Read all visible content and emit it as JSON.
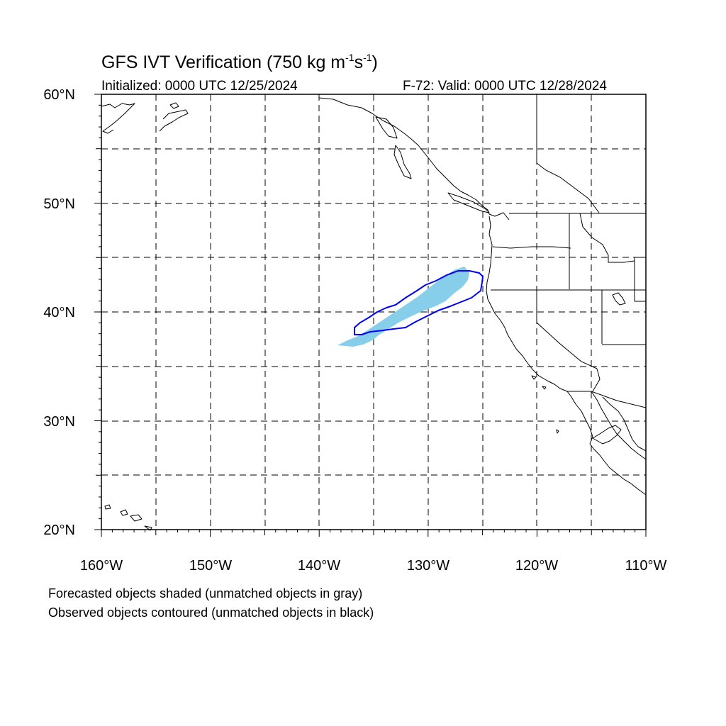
{
  "title": {
    "main": "GFS IVT Verification (750 kg m",
    "sup1": "-1",
    "mid": "s",
    "sup2": "-1",
    "end": ")"
  },
  "subtitle_left": "Initialized: 0000 UTC 12/25/2024",
  "subtitle_right": "F-72: Valid: 0000 UTC 12/28/2024",
  "map": {
    "lon_range": [
      -160,
      -110
    ],
    "lat_range": [
      20,
      60
    ],
    "lat_labels": [
      "60°N",
      "50°N",
      "40°N",
      "30°N",
      "20°N"
    ],
    "lon_labels": [
      "160°W",
      "150°W",
      "140°W",
      "130°W",
      "120°W",
      "110°W"
    ],
    "forecast_fill_color": "#87ceeb",
    "observed_contour_color": "#0000ff"
  },
  "footer": {
    "line1": "Forecasted objects shaded (unmatched objects in gray)",
    "line2": "Observed objects contoured (unmatched objects in black)"
  }
}
